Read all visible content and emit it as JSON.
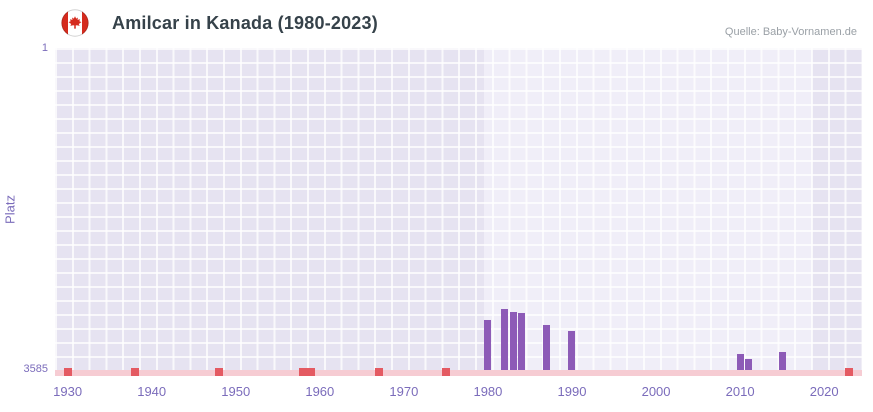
{
  "chart_data": {
    "type": "bar",
    "title": "Amilcar in Kanada (1980-2023)",
    "source": "Quelle: Baby-Vornamen.de",
    "ylabel": "Platz",
    "xlabel": "",
    "legend": "none",
    "grid": "on",
    "y_axis": {
      "min": 1,
      "max": 3585,
      "inverted": true,
      "tick_labels": [
        "1",
        "3585"
      ]
    },
    "x_axis": {
      "min": 1928.5,
      "max": 2024.5,
      "tick_years": [
        1930,
        1940,
        1950,
        1960,
        1970,
        1980,
        1990,
        2000,
        2010,
        2020
      ]
    },
    "series": [
      {
        "name": "Platz",
        "points": [
          {
            "year": 1980,
            "rank": 3030
          },
          {
            "year": 1982,
            "rank": 2905
          },
          {
            "year": 1983,
            "rank": 2940
          },
          {
            "year": 1984,
            "rank": 2945
          },
          {
            "year": 1987,
            "rank": 3085
          },
          {
            "year": 1990,
            "rank": 3150
          },
          {
            "year": 2010,
            "rank": 3405
          },
          {
            "year": 2011,
            "rank": 3460
          },
          {
            "year": 2015,
            "rank": 3390
          }
        ]
      }
    ],
    "unranked_marker_years": [
      1930,
      1938,
      1948,
      1958,
      1959,
      1967,
      1975,
      2023
    ],
    "dim_bands": [
      {
        "from": 1928.5,
        "to": 1979.5
      },
      {
        "from": 2018.5,
        "to": 2024.5
      }
    ],
    "colors": {
      "bar": "#8d5bb7",
      "axis_label": "#7b6cbb",
      "plot_bg": "#f0eef8",
      "dim_band": "#e6e3f1",
      "gridline": "#ffffff",
      "marker": "#e45a62",
      "axis_strip": "#f6ccd3",
      "title": "#36424a",
      "source": "#9aa0a6",
      "flag_red": "#d52b1e"
    }
  }
}
